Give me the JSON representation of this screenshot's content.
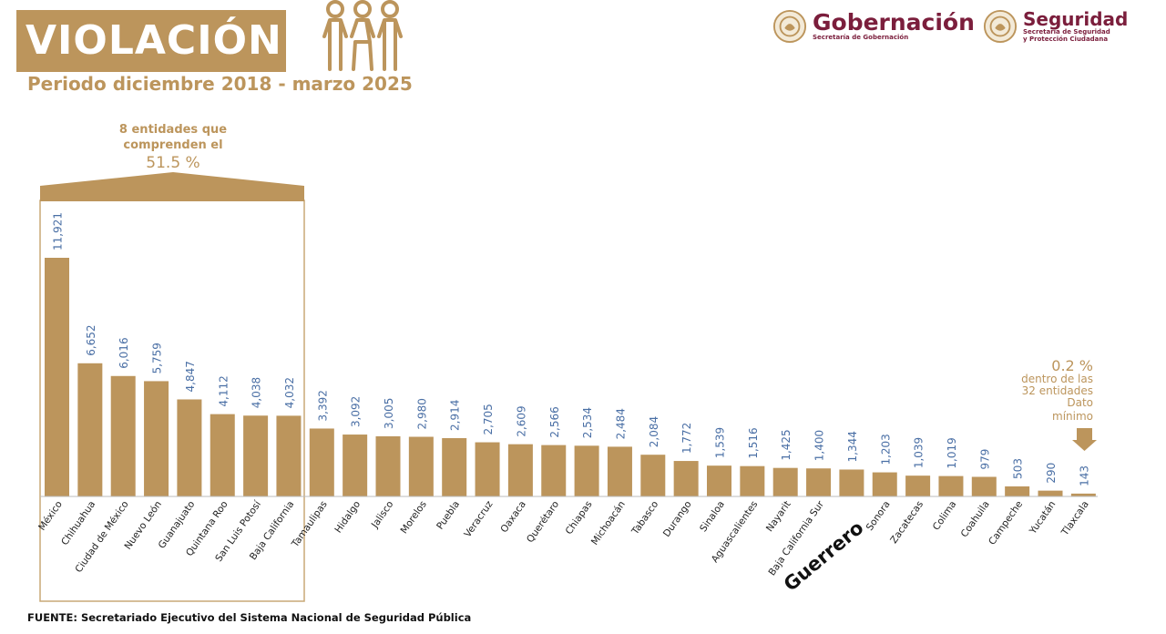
{
  "header": {
    "title": "VIOLACIÓN",
    "subtitle": "Periodo diciembre 2018 - marzo 2025",
    "family_icon": "family-icon"
  },
  "logos": {
    "gobernacion": {
      "name": "Gobernación",
      "sub": "Secretaría de Gobernación",
      "icon": "seal-icon"
    },
    "seguridad": {
      "name": "Seguridad",
      "sub_line1": "Secretaría de Seguridad",
      "sub_line2": "y Protección Ciudadana",
      "icon": "seal-icon"
    }
  },
  "annotations": {
    "group_line1": "8 entidades que",
    "group_line2": "comprenden el",
    "group_pct": "51.5 %",
    "min_pct": "0.2 %",
    "min_line1": "dentro de las",
    "min_line2": "32 entidades",
    "min_line3": "Dato",
    "min_line4": "mínimo",
    "highlight": "Guerrero"
  },
  "colors": {
    "bar": "#bc955c",
    "value_label": "#4a6fa5",
    "logo": "#7b1e3c"
  },
  "chart_data": {
    "type": "bar",
    "title": "VIOLACIÓN",
    "subtitle": "Periodo diciembre 2018 - marzo 2025",
    "categories": [
      "México",
      "Chihuahua",
      "Ciudad de México",
      "Nuevo León",
      "Guanajuato",
      "Quintana Roo",
      "San Luis Potosí",
      "Baja California",
      "Tamaulipas",
      "Hidalgo",
      "Jalisco",
      "Morelos",
      "Puebla",
      "Veracruz",
      "Oaxaca",
      "Querétaro",
      "Chiapas",
      "Michoacán",
      "Tabasco",
      "Durango",
      "Sinaloa",
      "Aguascalientes",
      "Nayarit",
      "Baja California Sur",
      "",
      "Sonora",
      "Zacatecas",
      "Colima",
      "Coahuila",
      "Campeche",
      "Yucatán",
      "Tlaxcala"
    ],
    "values": [
      11921,
      6652,
      6016,
      5759,
      4847,
      4112,
      4038,
      4032,
      3392,
      3092,
      3005,
      2980,
      2914,
      2705,
      2609,
      2566,
      2534,
      2484,
      2084,
      1772,
      1539,
      1516,
      1425,
      1400,
      1344,
      1203,
      1039,
      1019,
      979,
      503,
      290,
      143
    ],
    "value_labels": [
      "11,921",
      "6,652",
      "6,016",
      "5,759",
      "4,847",
      "4,112",
      "4,038",
      "4,032",
      "3,392",
      "3,092",
      "3,005",
      "2,980",
      "2,914",
      "2,705",
      "2,609",
      "2,566",
      "2,534",
      "2,484",
      "2,084",
      "1,772",
      "1,539",
      "1,516",
      "1,425",
      "1,400",
      "1,344",
      "1,203",
      "1,039",
      "1,019",
      "979",
      "503",
      "290",
      "143"
    ],
    "ylim": [
      0,
      11921
    ],
    "grid": false,
    "legend": "none"
  },
  "source": "FUENTE: Secretariado Ejecutivo del Sistema Nacional de Seguridad Pública"
}
